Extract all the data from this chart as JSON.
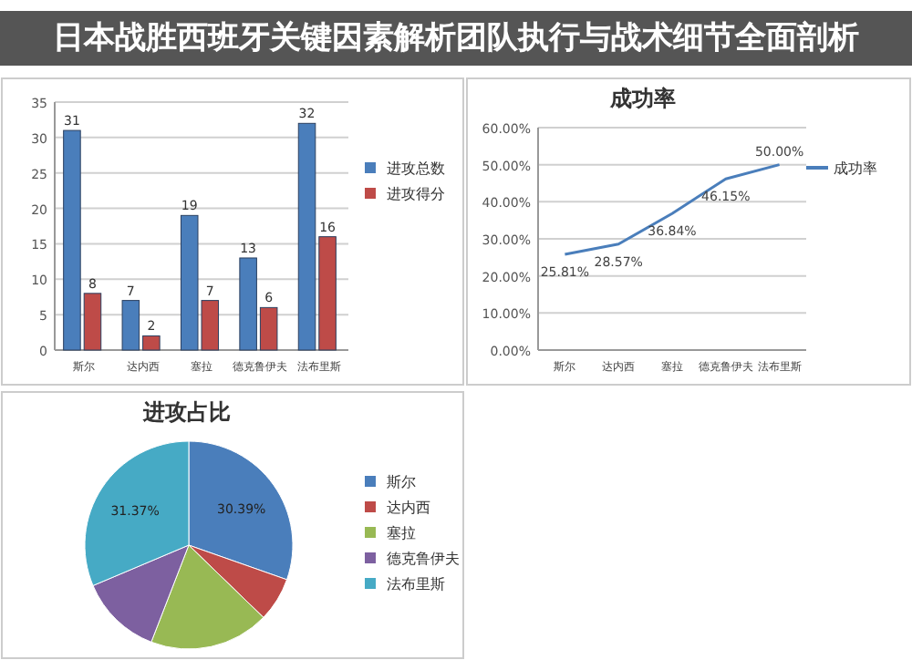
{
  "chart_data": [
    {
      "type": "bar",
      "annotations": [
        "日本战胜西班牙关键因素解析团队执行与战术细节全面剖析"
      ],
      "categories": [
        "斯尔",
        "达内西",
        "塞拉",
        "德克鲁伊夫",
        "法布里斯"
      ],
      "series": [
        {
          "name": "进攻总数",
          "color": "#4a7ebb",
          "values": [
            31,
            7,
            19,
            13,
            32
          ]
        },
        {
          "name": "进攻得分",
          "color": "#be4b48",
          "values": [
            8,
            2,
            7,
            6,
            16
          ]
        }
      ],
      "ylim": [
        0,
        35
      ],
      "yticks": [
        0,
        5,
        10,
        15,
        20,
        25,
        30,
        35
      ],
      "grid": "y",
      "legend": "right",
      "data_labels": true
    },
    {
      "type": "line",
      "title": "成功率",
      "categories": [
        "斯尔",
        "达内西",
        "塞拉",
        "德克鲁伊夫",
        "法布里斯"
      ],
      "series": [
        {
          "name": "成功率",
          "color": "#4a7ebb",
          "values": [
            25.81,
            28.57,
            36.84,
            46.15,
            50.0
          ],
          "value_labels": [
            "25.81%",
            "28.57%",
            "36.84%",
            "46.15%",
            "50.00%"
          ]
        }
      ],
      "ylim": [
        0,
        60
      ],
      "yticks": [
        {
          "value": 0,
          "label": "0.00%"
        },
        {
          "value": 10,
          "label": "10.00%"
        },
        {
          "value": 20,
          "label": "20.00%"
        },
        {
          "value": 30,
          "label": "30.00%"
        },
        {
          "value": 40,
          "label": "40.00%"
        },
        {
          "value": 50,
          "label": "50.00%"
        },
        {
          "value": 60,
          "label": "60.00%"
        }
      ],
      "grid": "y",
      "legend": "right",
      "marker": "none"
    },
    {
      "type": "pie",
      "title": "进攻占比",
      "categories": [
        "斯尔",
        "达内西",
        "塞拉",
        "德克鲁伊夫",
        "法布里斯"
      ],
      "values": [
        30.39,
        6.86,
        18.63,
        12.75,
        31.37
      ],
      "colors": [
        "#4a7ebb",
        "#be4b48",
        "#98b954",
        "#7d60a0",
        "#46aac5"
      ],
      "value_labels": [
        "30.39%",
        null,
        null,
        null,
        "31.37%"
      ],
      "legend": "right"
    }
  ]
}
